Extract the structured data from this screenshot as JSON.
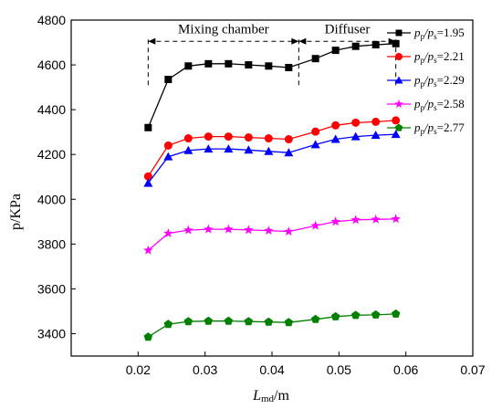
{
  "chart_data": {
    "type": "line",
    "xlabel": "L",
    "xlabel_sub": "md",
    "xlabel_unit": "/m",
    "ylabel": "p/KPa",
    "xlim": [
      0.01,
      0.07
    ],
    "ylim": [
      3300,
      4800
    ],
    "xticks": [
      "0.02",
      "0.03",
      "0.04",
      "0.05",
      "0.06",
      "0.07"
    ],
    "yticks": [
      "3400",
      "3600",
      "3800",
      "4000",
      "4200",
      "4400",
      "4600",
      "4800"
    ],
    "grid": false,
    "legend_position": "top-right",
    "annotations": {
      "mixing": "Mixing chamber",
      "diffuser": "Diffuser",
      "mixing_range": [
        0.0215,
        0.044
      ],
      "diffuser_range": [
        0.044,
        0.0585
      ],
      "level": 4705
    },
    "x": [
      0.0215,
      0.0245,
      0.0275,
      0.0305,
      0.0335,
      0.0365,
      0.0395,
      0.0425,
      0.0465,
      0.0495,
      0.0525,
      0.0555,
      0.0585
    ],
    "series": [
      {
        "name": "pp/ps=1.95",
        "name_parts": [
          "p",
          "p",
          "/p",
          "s",
          "=1.95"
        ],
        "color": "#000000",
        "marker": "square",
        "values": [
          4320,
          4535,
          4595,
          4605,
          4605,
          4600,
          4595,
          4588,
          4628,
          4665,
          4683,
          4690,
          4695
        ]
      },
      {
        "name": "pp/ps=2.21",
        "name_parts": [
          "p",
          "p",
          "/p",
          "s",
          "=2.21"
        ],
        "color": "#ff0000",
        "marker": "circle",
        "values": [
          4102,
          4240,
          4272,
          4280,
          4280,
          4276,
          4272,
          4268,
          4302,
          4330,
          4342,
          4346,
          4352
        ]
      },
      {
        "name": "pp/ps=2.29",
        "name_parts": [
          "p",
          "p",
          "/p",
          "s",
          "=2.29"
        ],
        "color": "#0000ff",
        "marker": "triangle",
        "values": [
          4072,
          4190,
          4218,
          4225,
          4225,
          4220,
          4214,
          4208,
          4244,
          4268,
          4280,
          4286,
          4290
        ]
      },
      {
        "name": "pp/ps=2.58",
        "name_parts": [
          "p",
          "p",
          "/p",
          "s",
          "=2.58"
        ],
        "color": "#ff00ff",
        "marker": "star",
        "values": [
          3772,
          3848,
          3862,
          3866,
          3866,
          3863,
          3860,
          3856,
          3882,
          3900,
          3908,
          3910,
          3912
        ]
      },
      {
        "name": "pp/ps=2.77",
        "name_parts": [
          "p",
          "p",
          "/p",
          "s",
          "=2.77"
        ],
        "color": "#008000",
        "marker": "pentagon",
        "values": [
          3385,
          3442,
          3454,
          3456,
          3456,
          3454,
          3452,
          3450,
          3464,
          3476,
          3482,
          3484,
          3488
        ]
      }
    ]
  }
}
